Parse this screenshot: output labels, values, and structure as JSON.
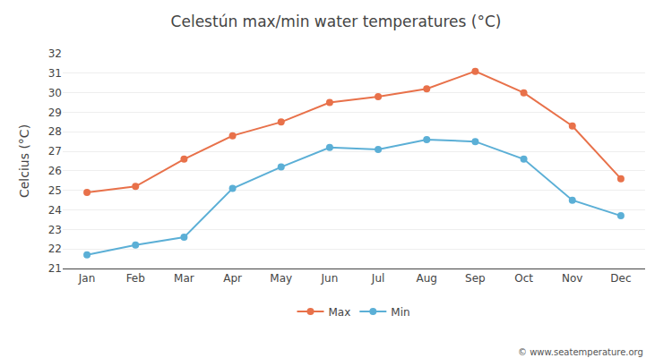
{
  "chart_data": {
    "type": "line",
    "title": "Celestún max/min water temperatures (°C)",
    "ylabel": "Celcius (°C)",
    "categories": [
      "Jan",
      "Feb",
      "Mar",
      "Apr",
      "May",
      "Jun",
      "Jul",
      "Aug",
      "Sep",
      "Oct",
      "Nov",
      "Dec"
    ],
    "series": [
      {
        "name": "Max",
        "color": "#e8714a",
        "marker": "circle",
        "line_style": "solid",
        "values": [
          24.9,
          25.2,
          26.6,
          27.8,
          28.5,
          29.5,
          29.8,
          30.2,
          31.1,
          30.0,
          28.3,
          25.6
        ]
      },
      {
        "name": "Min",
        "color": "#5bafd6",
        "marker": "circle",
        "line_style": "solid",
        "values": [
          21.7,
          22.2,
          22.6,
          25.1,
          26.2,
          27.2,
          27.1,
          27.6,
          27.5,
          26.6,
          24.5,
          23.7
        ]
      }
    ],
    "ylim": [
      21,
      32
    ],
    "yticks": [
      21,
      22,
      23,
      24,
      25,
      26,
      27,
      28,
      29,
      30,
      31,
      32
    ],
    "grid": true,
    "legend": "bottom",
    "annotations": [
      "© www.seatemperature.org"
    ]
  }
}
